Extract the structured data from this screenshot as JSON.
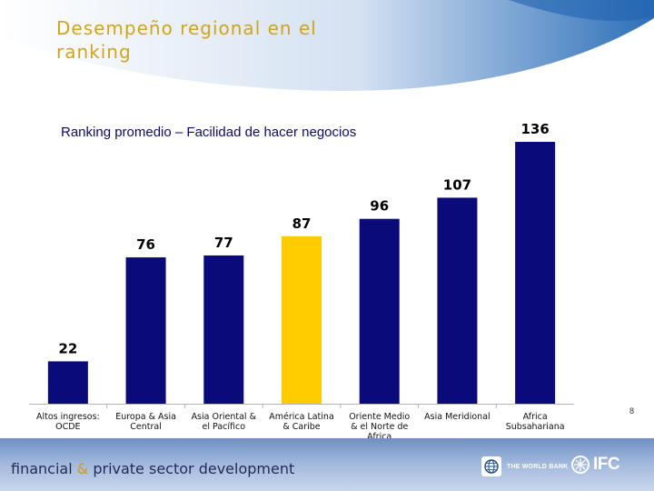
{
  "slide": {
    "title": "Desempeño  regional en el ranking",
    "page_number": "8"
  },
  "footer": {
    "text_part1": "financial",
    "text_amp": "&",
    "text_part2": "private sector development",
    "world_bank_label": "THE WORLD BANK",
    "ifc_label": "IFC"
  },
  "colors": {
    "bar_default": "#0a0a7a",
    "bar_highlight": "#ffcc00",
    "title": "#d2a419",
    "footer": "#8ea8d6"
  },
  "chart_data": {
    "type": "bar",
    "title": "Ranking promedio – Facilidad de hacer negocios",
    "categories": [
      [
        "Altos ingresos:",
        "OCDE"
      ],
      [
        "Europa & Asia",
        "Central"
      ],
      [
        "Asia Oriental &",
        "el Pacífico"
      ],
      [
        "América Latina",
        "& Caribe"
      ],
      [
        "Oriente Medio",
        "& el Norte de",
        "Africa"
      ],
      [
        "Asia Meridional"
      ],
      [
        "Africa",
        "Subsahariana"
      ]
    ],
    "values": [
      22,
      76,
      77,
      87,
      96,
      107,
      136
    ],
    "highlight_index": 3,
    "xlabel": "",
    "ylabel": "",
    "ylim": [
      0,
      136
    ],
    "grid": false,
    "legend": "none"
  }
}
